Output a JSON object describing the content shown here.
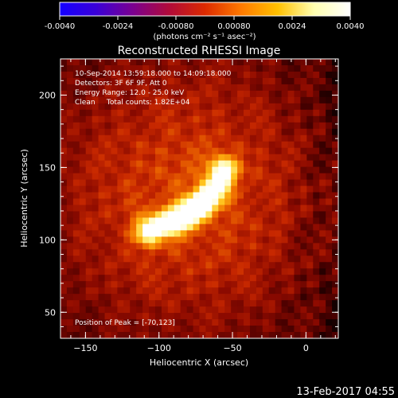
{
  "colorbar": {
    "ticks": [
      "-0.0040",
      "-0.0024",
      "-0.00080",
      "0.00080",
      "0.0024",
      "0.0040"
    ],
    "units": "(photons cm⁻² s⁻¹ asec⁻²)",
    "range": [
      -0.004,
      0.004
    ],
    "stops": [
      "#1400ff",
      "#3a00d8",
      "#7a0090",
      "#b00a3a",
      "#dc2a00",
      "#ff7a00",
      "#ffc000",
      "#ffffb0",
      "#ffffff"
    ]
  },
  "image": {
    "title": "Reconstructed RHESSI Image",
    "lines": [
      "10-Sep-2014 13:59:18.000 to 14:09:18.000",
      "Detectors: 3F 6F 9F, Att 0",
      "Energy Range: 12.0 - 25.0 keV",
      "Clean     Total counts: 1.82E+04"
    ],
    "peak": "Position of Peak = [-70,123]"
  },
  "footer": {
    "date": "13-Feb-2017 04:55"
  },
  "chart_data": {
    "type": "heatmap",
    "title": "Reconstructed RHESSI Image",
    "xlabel": "Heliocentric X (arcsec)",
    "ylabel": "Heliocentric Y (arcsec)",
    "xlim": [
      -167,
      22
    ],
    "ylim": [
      32,
      225
    ],
    "xticks": [
      -150,
      -100,
      -50,
      0
    ],
    "yticks": [
      50,
      100,
      150,
      200
    ],
    "peak": [
      -70,
      123
    ],
    "source_arc": [
      [
        -107,
        106
      ],
      [
        -95,
        111
      ],
      [
        -83,
        116
      ],
      [
        -74,
        122
      ],
      [
        -66,
        130
      ],
      [
        -60,
        138
      ],
      [
        -56,
        148
      ]
    ]
  }
}
